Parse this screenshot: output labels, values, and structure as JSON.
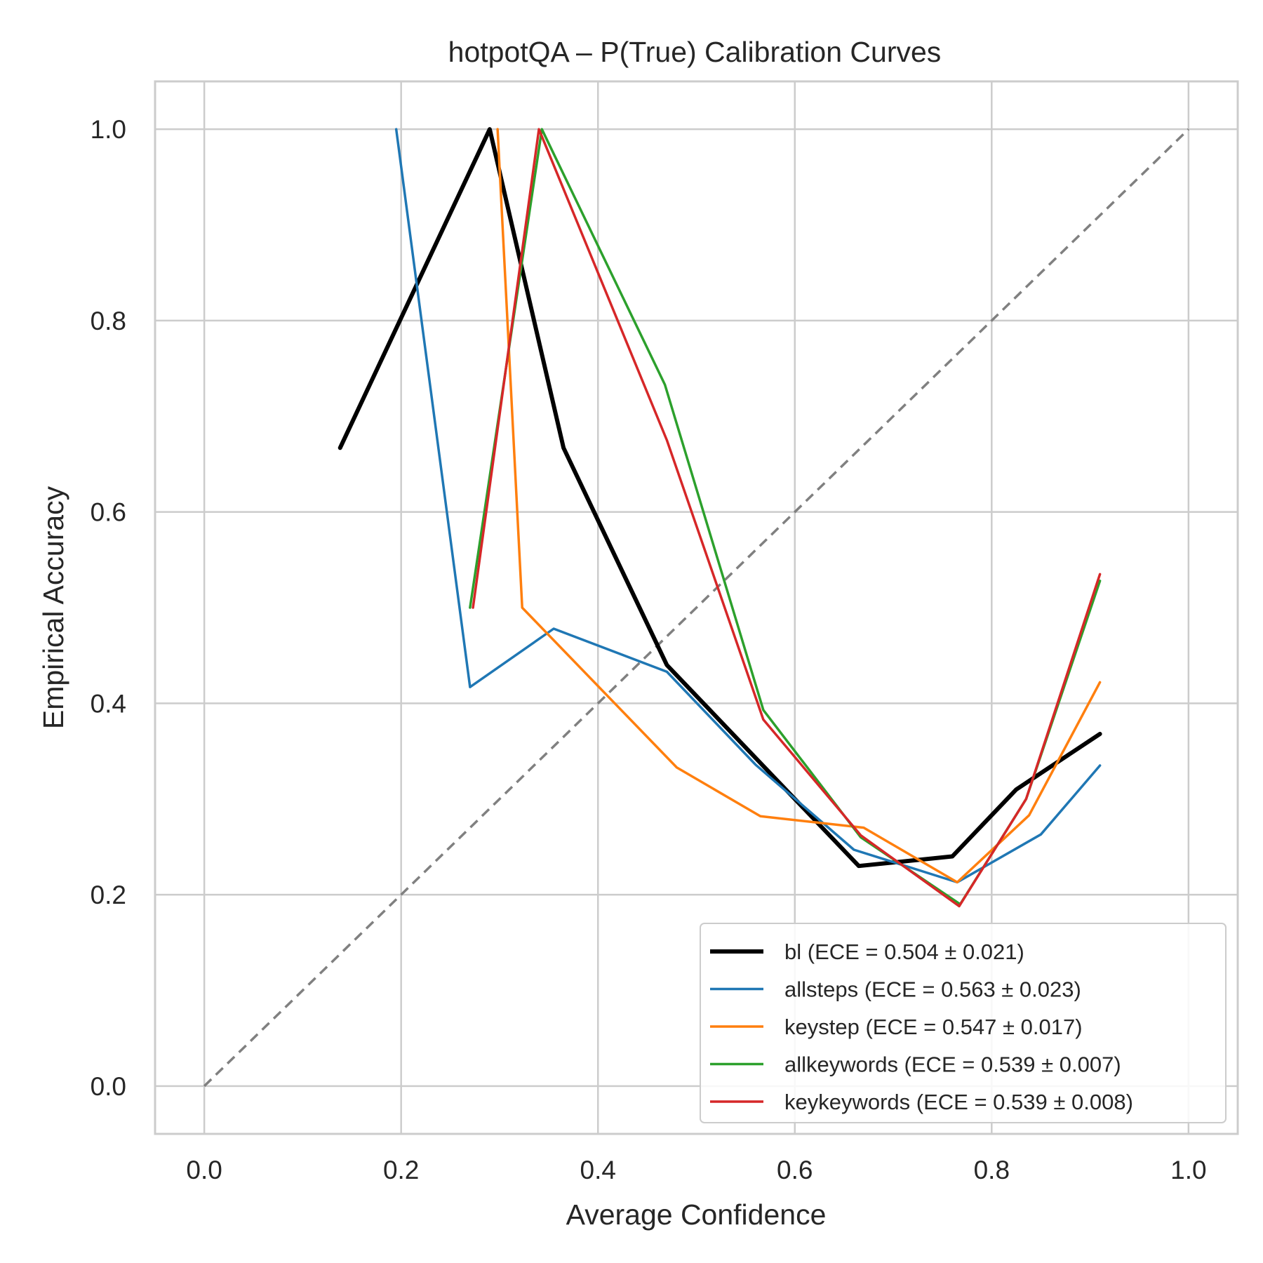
{
  "chart_data": {
    "type": "line",
    "title": "hotpotQA – P(True) Calibration Curves",
    "xlabel": "Average Confidence",
    "ylabel": "Empirical Accuracy",
    "xlim": [
      -0.05,
      1.05
    ],
    "ylim": [
      -0.05,
      1.05
    ],
    "xticks": [
      0.0,
      0.2,
      0.4,
      0.6,
      0.8,
      1.0
    ],
    "yticks": [
      0.0,
      0.2,
      0.4,
      0.6,
      0.8,
      1.0
    ],
    "tick_labels": [
      "0.0",
      "0.2",
      "0.4",
      "0.6",
      "0.8",
      "1.0"
    ],
    "grid": true,
    "legend_position": "lower-right",
    "diagonal": {
      "x": [
        0,
        1
      ],
      "y": [
        0,
        1
      ],
      "color": "#808080",
      "style": "dashed"
    },
    "series": [
      {
        "name": "bl (ECE = 0.504 ± 0.021)",
        "color": "#000000",
        "width": 6,
        "x": [
          0.138,
          0.29,
          0.365,
          0.47,
          0.665,
          0.76,
          0.825,
          0.91
        ],
        "y": [
          0.667,
          1.0,
          0.667,
          0.44,
          0.23,
          0.24,
          0.31,
          0.368
        ]
      },
      {
        "name": "allsteps (ECE = 0.563 ± 0.023)",
        "color": "#1f77b4",
        "width": 3.5,
        "x": [
          0.195,
          0.27,
          0.355,
          0.47,
          0.56,
          0.66,
          0.765,
          0.85,
          0.91
        ],
        "y": [
          1.0,
          0.417,
          0.478,
          0.433,
          0.336,
          0.247,
          0.213,
          0.263,
          0.335
        ]
      },
      {
        "name": "keystep (ECE = 0.547 ± 0.017)",
        "color": "#ff7f0e",
        "width": 3.5,
        "x": [
          0.298,
          0.323,
          0.48,
          0.565,
          0.67,
          0.765,
          0.838,
          0.91
        ],
        "y": [
          1.0,
          0.5,
          0.333,
          0.282,
          0.27,
          0.213,
          0.283,
          0.422
        ]
      },
      {
        "name": "allkeywords (ECE = 0.539 ± 0.007)",
        "color": "#2ca02c",
        "width": 3.5,
        "x": [
          0.27,
          0.343,
          0.468,
          0.568,
          0.667,
          0.768,
          0.835,
          0.91
        ],
        "y": [
          0.5,
          1.0,
          0.733,
          0.393,
          0.26,
          0.19,
          0.3,
          0.528
        ]
      },
      {
        "name": "keykeywords (ECE = 0.539 ± 0.008)",
        "color": "#d62728",
        "width": 3.5,
        "x": [
          0.273,
          0.34,
          0.47,
          0.568,
          0.667,
          0.767,
          0.835,
          0.91
        ],
        "y": [
          0.5,
          1.0,
          0.675,
          0.383,
          0.262,
          0.188,
          0.3,
          0.535
        ]
      }
    ]
  }
}
